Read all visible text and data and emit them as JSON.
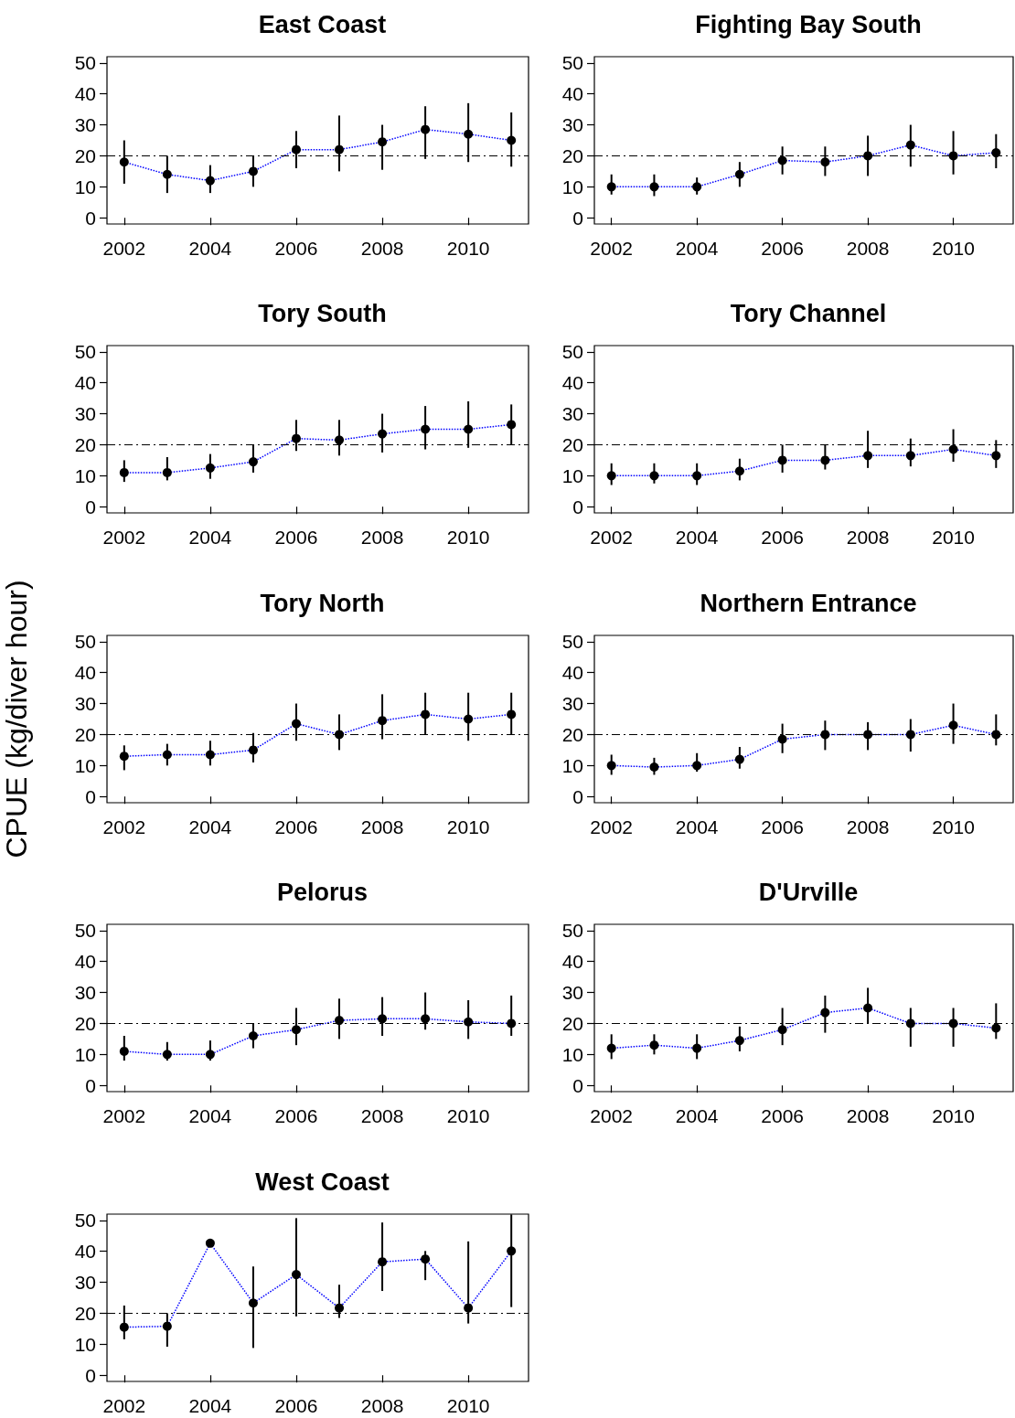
{
  "chart_data": [
    {
      "type": "line",
      "title": "East Coast",
      "x": [
        2002,
        2003,
        2004,
        2005,
        2006,
        2007,
        2008,
        2009,
        2010,
        2011
      ],
      "values": [
        18,
        14,
        12,
        15,
        22,
        22,
        24.5,
        28.5,
        27,
        25
      ],
      "errors": [
        [
          11,
          25
        ],
        [
          8,
          20
        ],
        [
          8,
          17
        ],
        [
          10,
          20
        ],
        [
          16,
          28
        ],
        [
          15,
          33
        ],
        [
          15.5,
          30
        ],
        [
          19,
          36
        ],
        [
          18,
          37
        ],
        [
          16.5,
          34
        ]
      ],
      "color": "#0000ff",
      "marker": "circle",
      "line_style": "dotted",
      "xlim": [
        2001.6,
        2011.4
      ],
      "xticks": [
        2002,
        2004,
        2006,
        2008,
        2010
      ],
      "ylim": [
        -2,
        52
      ],
      "yticks": [
        0,
        10,
        20,
        30,
        40,
        50
      ],
      "ref_lines": [
        {
          "axis": "y",
          "value": 20,
          "color": "#000000"
        }
      ],
      "grid": false
    },
    {
      "type": "line",
      "title": "Fighting Bay South",
      "x": [
        2002,
        2003,
        2004,
        2005,
        2006,
        2007,
        2008,
        2009,
        2010,
        2011
      ],
      "values": [
        10,
        10,
        10,
        14,
        18.5,
        18,
        20,
        23.5,
        20,
        21
      ],
      "errors": [
        [
          7.5,
          14
        ],
        [
          7,
          14
        ],
        [
          7.5,
          13
        ],
        [
          10,
          18
        ],
        [
          14,
          23
        ],
        [
          13.5,
          23
        ],
        [
          13.5,
          26.5
        ],
        [
          16.5,
          30
        ],
        [
          14,
          28
        ],
        [
          16,
          27
        ]
      ],
      "color": "#0000ff",
      "marker": "circle",
      "line_style": "dotted",
      "xlim": [
        2001.6,
        2011.4
      ],
      "xticks": [
        2002,
        2004,
        2006,
        2008,
        2010
      ],
      "ylim": [
        -2,
        52
      ],
      "yticks": [
        0,
        10,
        20,
        30,
        40,
        50
      ],
      "ref_lines": [
        {
          "axis": "y",
          "value": 20,
          "color": "#000000"
        }
      ],
      "grid": false
    },
    {
      "type": "line",
      "title": "Tory South",
      "x": [
        2002,
        2003,
        2004,
        2005,
        2006,
        2007,
        2008,
        2009,
        2010,
        2011
      ],
      "values": [
        11,
        11,
        12.5,
        14.5,
        22,
        21.5,
        23.5,
        25,
        25,
        26.5
      ],
      "errors": [
        [
          8,
          15
        ],
        [
          8.5,
          16
        ],
        [
          9,
          17
        ],
        [
          11,
          20
        ],
        [
          18,
          28
        ],
        [
          16.5,
          28
        ],
        [
          17.5,
          30
        ],
        [
          18.5,
          32.5
        ],
        [
          19,
          34
        ],
        [
          20,
          33
        ]
      ],
      "color": "#0000ff",
      "marker": "circle",
      "line_style": "dotted",
      "xlim": [
        2001.6,
        2011.4
      ],
      "xticks": [
        2002,
        2004,
        2006,
        2008,
        2010
      ],
      "ylim": [
        -2,
        52
      ],
      "yticks": [
        0,
        10,
        20,
        30,
        40,
        50
      ],
      "ref_lines": [
        {
          "axis": "y",
          "value": 20,
          "color": "#000000"
        }
      ],
      "grid": false
    },
    {
      "type": "line",
      "title": "Tory Channel",
      "x": [
        2002,
        2003,
        2004,
        2005,
        2006,
        2007,
        2008,
        2009,
        2010,
        2011
      ],
      "values": [
        10,
        10,
        10,
        11.5,
        15,
        15,
        16.5,
        16.5,
        18.5,
        16.5
      ],
      "errors": [
        [
          7,
          14
        ],
        [
          7.5,
          14
        ],
        [
          7,
          14
        ],
        [
          8.5,
          15.5
        ],
        [
          11,
          20
        ],
        [
          12,
          20
        ],
        [
          12.5,
          24.5
        ],
        [
          13,
          22
        ],
        [
          14.5,
          25
        ],
        [
          12.5,
          21.5
        ]
      ],
      "color": "#0000ff",
      "marker": "circle",
      "line_style": "dotted",
      "xlim": [
        2001.6,
        2011.4
      ],
      "xticks": [
        2002,
        2004,
        2006,
        2008,
        2010
      ],
      "ylim": [
        -2,
        52
      ],
      "yticks": [
        0,
        10,
        20,
        30,
        40,
        50
      ],
      "ref_lines": [
        {
          "axis": "y",
          "value": 20,
          "color": "#000000"
        }
      ],
      "grid": false
    },
    {
      "type": "line",
      "title": "Tory North",
      "ylabel": "CPUE (kg/diver hour)",
      "x": [
        2002,
        2003,
        2004,
        2005,
        2006,
        2007,
        2008,
        2009,
        2010,
        2011
      ],
      "values": [
        13,
        13.5,
        13.5,
        15,
        23.5,
        20,
        24.5,
        26.5,
        25,
        26.5
      ],
      "errors": [
        [
          8.5,
          16.5
        ],
        [
          10,
          17
        ],
        [
          10,
          18
        ],
        [
          11,
          20.5
        ],
        [
          18,
          30
        ],
        [
          15,
          26.5
        ],
        [
          18.5,
          33
        ],
        [
          20,
          33.5
        ],
        [
          18,
          33.5
        ],
        [
          20,
          33.5
        ]
      ],
      "color": "#0000ff",
      "marker": "circle",
      "line_style": "dotted",
      "xlim": [
        2001.6,
        2011.4
      ],
      "xticks": [
        2002,
        2004,
        2006,
        2008,
        2010
      ],
      "ylim": [
        -2,
        52
      ],
      "yticks": [
        0,
        10,
        20,
        30,
        40,
        50
      ],
      "ref_lines": [
        {
          "axis": "y",
          "value": 20,
          "color": "#000000"
        }
      ],
      "grid": false
    },
    {
      "type": "line",
      "title": "Northern Entrance",
      "x": [
        2002,
        2003,
        2004,
        2005,
        2006,
        2007,
        2008,
        2009,
        2010,
        2011
      ],
      "values": [
        10,
        9.5,
        10,
        12,
        18.5,
        20,
        20,
        20,
        23,
        20
      ],
      "errors": [
        [
          7,
          13.5
        ],
        [
          7,
          12.5
        ],
        [
          8,
          14
        ],
        [
          9,
          16
        ],
        [
          14,
          23.5
        ],
        [
          15,
          24.5
        ],
        [
          15,
          24
        ],
        [
          14.5,
          25
        ],
        [
          17,
          30
        ],
        [
          16.5,
          26.5
        ]
      ],
      "color": "#0000ff",
      "marker": "circle",
      "line_style": "dotted",
      "xlim": [
        2001.6,
        2011.4
      ],
      "xticks": [
        2002,
        2004,
        2006,
        2008,
        2010
      ],
      "ylim": [
        -2,
        52
      ],
      "yticks": [
        0,
        10,
        20,
        30,
        40,
        50
      ],
      "ref_lines": [
        {
          "axis": "y",
          "value": 20,
          "color": "#000000"
        }
      ],
      "grid": false
    },
    {
      "type": "line",
      "title": "Pelorus",
      "x": [
        2002,
        2003,
        2004,
        2005,
        2006,
        2007,
        2008,
        2009,
        2010,
        2011
      ],
      "values": [
        11,
        10,
        10,
        16,
        18,
        21,
        21.5,
        21.5,
        20.5,
        20
      ],
      "errors": [
        [
          8,
          16
        ],
        [
          8,
          14
        ],
        [
          8,
          14.5
        ],
        [
          12,
          20
        ],
        [
          13,
          25
        ],
        [
          15,
          28
        ],
        [
          16,
          28.5
        ],
        [
          18,
          30
        ],
        [
          15,
          27.5
        ],
        [
          16,
          29
        ]
      ],
      "color": "#0000ff",
      "marker": "circle",
      "line_style": "dotted",
      "xlim": [
        2001.6,
        2011.4
      ],
      "xticks": [
        2002,
        2004,
        2006,
        2008,
        2010
      ],
      "ylim": [
        -2,
        52
      ],
      "yticks": [
        0,
        10,
        20,
        30,
        40,
        50
      ],
      "ref_lines": [
        {
          "axis": "y",
          "value": 20,
          "color": "#000000"
        }
      ],
      "grid": false
    },
    {
      "type": "line",
      "title": "D'Urville",
      "x": [
        2002,
        2003,
        2004,
        2005,
        2006,
        2007,
        2008,
        2009,
        2010,
        2011
      ],
      "values": [
        12,
        13,
        12,
        14.5,
        18,
        23.5,
        25,
        20,
        20,
        18.5
      ],
      "errors": [
        [
          8.5,
          16.5
        ],
        [
          10,
          16.5
        ],
        [
          8.5,
          16.5
        ],
        [
          11,
          19
        ],
        [
          13,
          25
        ],
        [
          17,
          29
        ],
        [
          20,
          31.5
        ],
        [
          12.5,
          25
        ],
        [
          12.5,
          25
        ],
        [
          15,
          26.5
        ]
      ],
      "color": "#0000ff",
      "marker": "circle",
      "line_style": "dotted",
      "xlim": [
        2001.6,
        2011.4
      ],
      "xticks": [
        2002,
        2004,
        2006,
        2008,
        2010
      ],
      "ylim": [
        -2,
        52
      ],
      "yticks": [
        0,
        10,
        20,
        30,
        40,
        50
      ],
      "ref_lines": [
        {
          "axis": "y",
          "value": 20,
          "color": "#000000"
        }
      ],
      "grid": false
    },
    {
      "type": "line",
      "title": "West Coast",
      "x": [
        2002,
        2003,
        2004,
        2005,
        2006,
        2007,
        2008,
        2009,
        2010,
        2011
      ],
      "values": [
        15.5,
        15.8,
        42.6,
        23.3,
        32.5,
        21.7,
        36.6,
        37.5,
        21.7,
        40.1
      ],
      "errors": [
        [
          11.6,
          22.5
        ],
        [
          9.2,
          20
        ],
        null,
        [
          8.8,
          35.1
        ],
        [
          19,
          50.7
        ],
        [
          18.5,
          29.2
        ],
        [
          27.2,
          49.3
        ],
        [
          30.7,
          40.1
        ],
        [
          16.7,
          43.2
        ],
        [
          22,
          51.9
        ]
      ],
      "color": "#0000ff",
      "marker": "circle",
      "line_style": "dotted",
      "xlim": [
        2001.6,
        2011.4
      ],
      "xticks": [
        2002,
        2004,
        2006,
        2008,
        2010
      ],
      "ylim": [
        -2,
        52
      ],
      "yticks": [
        0,
        10,
        20,
        30,
        40,
        50
      ],
      "ref_lines": [
        {
          "axis": "y",
          "value": 20,
          "color": "#000000"
        }
      ],
      "grid": false
    }
  ]
}
